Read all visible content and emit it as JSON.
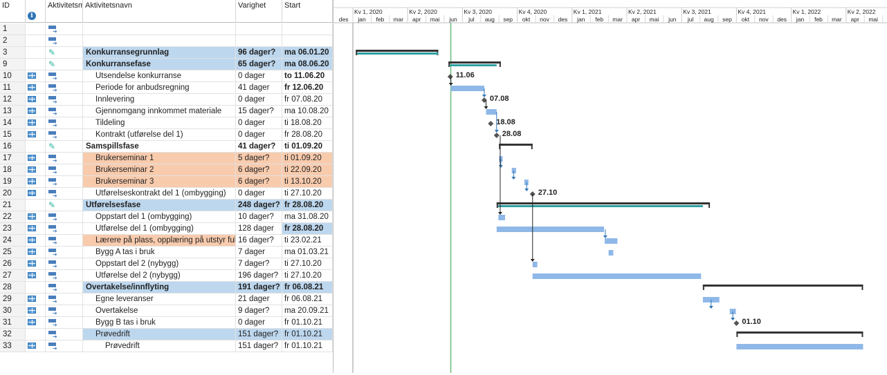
{
  "columns": {
    "id": "ID",
    "info_icon": "info-icon",
    "mode": "Aktivitetsm",
    "name": "Aktivitetsnavn",
    "duration": "Varighet",
    "start": "Start"
  },
  "colors": {
    "summary_bg": "#bdd7ee",
    "highlight_bg": "#f8cbad",
    "task_bar": "#8fb8e8",
    "summary_bar": "#333333",
    "progress": "#2e9fa0",
    "link": "#2e75b6",
    "today_line": "#2ea043"
  },
  "rows": [
    {
      "id": "1",
      "name": "",
      "duration": "",
      "start": "",
      "mode_icon": "auto-schedule-icon",
      "cal_icon": false,
      "style": "normal",
      "indent": 0
    },
    {
      "id": "2",
      "name": "",
      "duration": "",
      "start": "",
      "mode_icon": "auto-schedule-icon",
      "cal_icon": false,
      "style": "normal",
      "indent": 0
    },
    {
      "id": "3",
      "name": "Konkurransegrunnlag",
      "duration": "96 dager?",
      "start": "ma 06.01.20",
      "mode_icon": "manual-pin-icon",
      "cal_icon": false,
      "style": "summary",
      "indent": 0
    },
    {
      "id": "9",
      "name": "Konkurransefase",
      "duration": "65 dager?",
      "start": "ma 08.06.20",
      "mode_icon": "manual-pin-icon",
      "cal_icon": false,
      "style": "summary",
      "indent": 0
    },
    {
      "id": "10",
      "name": "Utsendelse konkurranse",
      "duration": "0 dager",
      "start": "to 11.06.20",
      "mode_icon": "auto-schedule-icon",
      "cal_icon": true,
      "style": "normal",
      "indent": 1,
      "start_bold": true
    },
    {
      "id": "11",
      "name": "Periode for anbudsregning",
      "duration": "41 dager",
      "start": "fr 12.06.20",
      "mode_icon": "auto-schedule-icon",
      "cal_icon": true,
      "style": "normal",
      "indent": 1,
      "start_bold": true
    },
    {
      "id": "12",
      "name": "Innlevering",
      "duration": "0 dager",
      "start": "fr 07.08.20",
      "mode_icon": "auto-schedule-icon",
      "cal_icon": true,
      "style": "normal",
      "indent": 1
    },
    {
      "id": "13",
      "name": "Gjennomgang innkommet materiale",
      "duration": "15 dager?",
      "start": "ma 10.08.20",
      "mode_icon": "auto-schedule-icon",
      "cal_icon": true,
      "style": "normal",
      "indent": 1
    },
    {
      "id": "14",
      "name": "Tildeling",
      "duration": "0 dager",
      "start": "ti 18.08.20",
      "mode_icon": "auto-schedule-icon",
      "cal_icon": true,
      "style": "normal",
      "indent": 1
    },
    {
      "id": "15",
      "name": "Kontrakt (utførelse del 1)",
      "duration": "0 dager",
      "start": "fr 28.08.20",
      "mode_icon": "auto-schedule-icon",
      "cal_icon": true,
      "style": "normal",
      "indent": 1
    },
    {
      "id": "16",
      "name": "Samspillsfase",
      "duration": "41 dager?",
      "start": "ti 01.09.20",
      "mode_icon": "manual-pin-icon",
      "cal_icon": false,
      "style": "normal-bold",
      "indent": 0
    },
    {
      "id": "17",
      "name": "Brukerseminar 1",
      "duration": "5 dager?",
      "start": "ti 01.09.20",
      "mode_icon": "auto-schedule-icon",
      "cal_icon": true,
      "style": "orange",
      "indent": 1
    },
    {
      "id": "18",
      "name": "Brukerseminar 2",
      "duration": "6 dager?",
      "start": "ti 22.09.20",
      "mode_icon": "auto-schedule-icon",
      "cal_icon": true,
      "style": "orange",
      "indent": 1
    },
    {
      "id": "19",
      "name": "Brukerseminar 3",
      "duration": "6 dager?",
      "start": "ti 13.10.20",
      "mode_icon": "auto-schedule-icon",
      "cal_icon": true,
      "style": "orange",
      "indent": 1
    },
    {
      "id": "20",
      "name": "Utførelseskontrakt del 1 (ombygging)",
      "duration": "0 dager",
      "start": "ti 27.10.20",
      "mode_icon": "auto-schedule-icon",
      "cal_icon": true,
      "style": "normal",
      "indent": 1
    },
    {
      "id": "21",
      "name": "Utførelsesfase",
      "duration": "248 dager?",
      "start": "fr 28.08.20",
      "mode_icon": "manual-pin-icon",
      "cal_icon": false,
      "style": "summary",
      "indent": 0
    },
    {
      "id": "22",
      "name": "Oppstart del 1 (ombygging)",
      "duration": "10 dager?",
      "start": "ma 31.08.20",
      "mode_icon": "auto-schedule-icon",
      "cal_icon": true,
      "style": "normal",
      "indent": 1
    },
    {
      "id": "23",
      "name": "Utførelse del 1 (ombygging)",
      "duration": "128 dager",
      "start": "fr 28.08.20",
      "mode_icon": "auto-schedule-icon",
      "cal_icon": true,
      "style": "normal",
      "indent": 1,
      "start_bold": true,
      "start_bg": true
    },
    {
      "id": "24",
      "name": "Lærere på plass, opplæring på utstyr ful",
      "duration": "16 dager?",
      "start": "ti 23.02.21",
      "mode_icon": "auto-schedule-icon",
      "cal_icon": true,
      "style": "orange-name",
      "indent": 1
    },
    {
      "id": "25",
      "name": "Bygg A tas i bruk",
      "duration": "7 dager",
      "start": "ma 01.03.21",
      "mode_icon": "auto-schedule-icon",
      "cal_icon": true,
      "style": "normal",
      "indent": 1
    },
    {
      "id": "26",
      "name": "Oppstart del 2 (nybygg)",
      "duration": "7 dager?",
      "start": "ti 27.10.20",
      "mode_icon": "auto-schedule-icon",
      "cal_icon": true,
      "style": "normal",
      "indent": 1
    },
    {
      "id": "27",
      "name": "Utførelse del 2  (nybygg)",
      "duration": "196 dager?",
      "start": "ti 27.10.20",
      "mode_icon": "auto-schedule-icon",
      "cal_icon": true,
      "style": "normal",
      "indent": 1
    },
    {
      "id": "28",
      "name": "Overtakelse/innflyting",
      "duration": "191 dager?",
      "start": "fr 06.08.21",
      "mode_icon": "auto-schedule-icon",
      "cal_icon": false,
      "style": "summary",
      "indent": 0
    },
    {
      "id": "29",
      "name": "Egne leveranser",
      "duration": "21 dager",
      "start": "fr 06.08.21",
      "mode_icon": "auto-schedule-icon",
      "cal_icon": true,
      "style": "normal",
      "indent": 1
    },
    {
      "id": "30",
      "name": "Overtakelse",
      "duration": "9 dager?",
      "start": "ma 20.09.21",
      "mode_icon": "auto-schedule-icon",
      "cal_icon": true,
      "style": "normal",
      "indent": 1
    },
    {
      "id": "31",
      "name": "Bygg B tas i bruk",
      "duration": "0 dager",
      "start": "fr 01.10.21",
      "mode_icon": "auto-schedule-icon",
      "cal_icon": true,
      "style": "normal",
      "indent": 1
    },
    {
      "id": "32",
      "name": "Prøvedrift",
      "duration": "151 dager?",
      "start": "fr 01.10.21",
      "mode_icon": "auto-schedule-icon",
      "cal_icon": false,
      "style": "summary-light",
      "indent": 1
    },
    {
      "id": "33",
      "name": "Prøvedrift",
      "duration": "151 dager?",
      "start": "fr 01.10.21",
      "mode_icon": "auto-schedule-icon",
      "cal_icon": true,
      "style": "normal",
      "indent": 2
    }
  ],
  "timescale": {
    "quarters": [
      "Kv 1, 2020",
      "Kv 2, 2020",
      "Kv 3, 2020",
      "Kv 4, 2020",
      "Kv 1, 2021",
      "Kv 2, 2021",
      "Kv 3, 2021",
      "Kv 4, 2021",
      "Kv 1, 2022",
      "Kv 2, 2022"
    ],
    "months": [
      "des",
      "jan",
      "feb",
      "mar",
      "apr",
      "mai",
      "jun",
      "jul",
      "aug",
      "sep",
      "okt",
      "nov",
      "des",
      "jan",
      "feb",
      "mar",
      "apr",
      "mai",
      "jun",
      "jul",
      "aug",
      "sep",
      "okt",
      "nov",
      "des",
      "jan",
      "feb",
      "mar",
      "apr",
      "mai"
    ]
  },
  "gantt": {
    "summaries": [
      {
        "row": 2,
        "from": "2020-01-06",
        "to": "2020-05-22",
        "progress_to": "2020-05-22"
      },
      {
        "row": 3,
        "from": "2020-06-08",
        "to": "2020-09-04",
        "progress_to": "2020-08-28"
      },
      {
        "row": 10,
        "from": "2020-09-01",
        "to": "2020-10-27",
        "progress_to": "2020-09-01"
      },
      {
        "row": 15,
        "from": "2020-08-28",
        "to": "2021-08-18",
        "progress_to": "2021-08-06"
      },
      {
        "row": 22,
        "from": "2021-08-06",
        "to": "2022-04-29",
        "progress_to": null
      },
      {
        "row": 26,
        "from": "2021-10-01",
        "to": "2022-04-29",
        "progress_to": null
      }
    ],
    "tasks": [
      {
        "row": 5,
        "from": "2020-06-12",
        "to": "2020-08-07"
      },
      {
        "row": 7,
        "from": "2020-08-10",
        "to": "2020-08-28"
      },
      {
        "row": 11,
        "from": "2020-09-01",
        "to": "2020-09-07"
      },
      {
        "row": 12,
        "from": "2020-09-22",
        "to": "2020-09-29"
      },
      {
        "row": 13,
        "from": "2020-10-13",
        "to": "2020-10-20"
      },
      {
        "row": 16,
        "from": "2020-08-31",
        "to": "2020-09-11"
      },
      {
        "row": 17,
        "from": "2020-08-28",
        "to": "2021-02-22"
      },
      {
        "row": 18,
        "from": "2021-02-23",
        "to": "2021-03-16"
      },
      {
        "row": 19,
        "from": "2021-03-01",
        "to": "2021-03-09"
      },
      {
        "row": 20,
        "from": "2020-10-27",
        "to": "2020-11-04"
      },
      {
        "row": 21,
        "from": "2020-10-27",
        "to": "2021-08-03"
      },
      {
        "row": 23,
        "from": "2021-08-06",
        "to": "2021-09-03"
      },
      {
        "row": 24,
        "from": "2021-09-20",
        "to": "2021-09-30"
      },
      {
        "row": 27,
        "from": "2021-10-01",
        "to": "2022-04-29"
      }
    ],
    "milestones": [
      {
        "row": 4,
        "date": "2020-06-11",
        "label": "11.06"
      },
      {
        "row": 6,
        "date": "2020-08-07",
        "label": "07.08"
      },
      {
        "row": 8,
        "date": "2020-08-18",
        "label": "18.08"
      },
      {
        "row": 9,
        "date": "2020-08-28",
        "label": "28.08"
      },
      {
        "row": 14,
        "date": "2020-10-27",
        "label": "27.10"
      },
      {
        "row": 25,
        "date": "2021-10-01",
        "label": "01.10"
      }
    ],
    "today": "2020-06-12"
  }
}
